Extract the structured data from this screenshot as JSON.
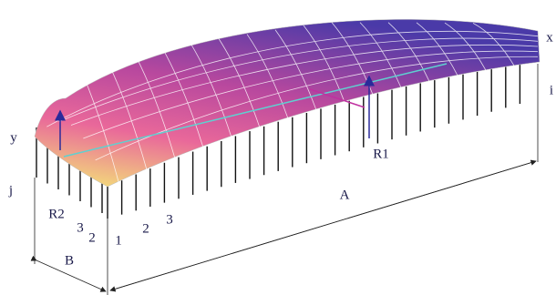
{
  "axes": {
    "x": "x",
    "y": "y",
    "i": "i",
    "j": "j"
  },
  "reactions": {
    "r1": "R1",
    "r2": "R2"
  },
  "dimensions": {
    "a": "A",
    "b": "B"
  },
  "column_numbers": [
    "3",
    "2",
    "1",
    "2",
    "3"
  ]
}
